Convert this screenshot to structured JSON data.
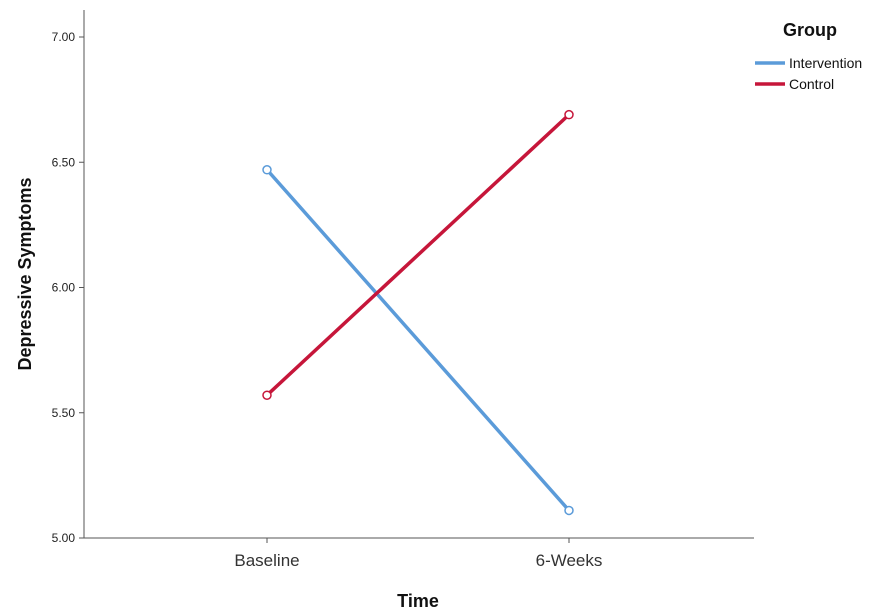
{
  "chart_data": {
    "type": "line",
    "categories": [
      "Baseline",
      "6-Weeks"
    ],
    "series": [
      {
        "name": "Intervention",
        "values": [
          6.47,
          5.11
        ],
        "color": "#5b9bd9"
      },
      {
        "name": "Control",
        "values": [
          5.57,
          6.69
        ],
        "color": "#c6163a"
      }
    ],
    "xlabel": "Time",
    "ylabel": "Depressive Symptoms",
    "ylim": [
      5.0,
      7.0
    ],
    "yticks": [
      "5.00",
      "5.50",
      "6.00",
      "6.50",
      "7.00"
    ],
    "legend_title": "Group",
    "legend_position": "top-right",
    "grid": false
  }
}
